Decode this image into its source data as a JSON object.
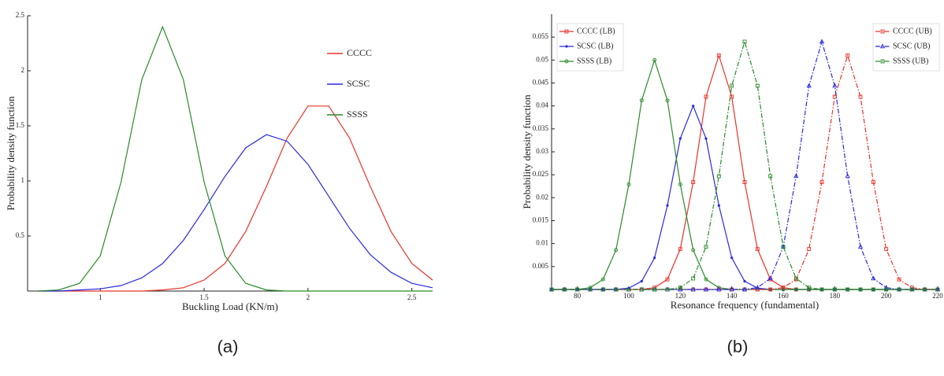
{
  "captions": [
    "(a)",
    "(b)"
  ],
  "chart_data": [
    {
      "type": "line",
      "x_label": "Buckling Load (KN/m)",
      "y_label": "Probability density function",
      "x": [
        0.7,
        0.8,
        0.9,
        1.0,
        1.1,
        1.2,
        1.3,
        1.4,
        1.5,
        1.6,
        1.7,
        1.8,
        1.9,
        2.0,
        2.1,
        2.2,
        2.3,
        2.4,
        2.5,
        2.6
      ],
      "xlim": [
        0.65,
        2.6
      ],
      "xticks": [
        1,
        1.5,
        2,
        2.5
      ],
      "ylim": [
        0,
        2.5
      ],
      "yticks": [
        0.5,
        1,
        1.5,
        2,
        2.5
      ],
      "series": [
        {
          "name": "CCCC",
          "color": "#e8332b",
          "values": [
            0,
            0,
            0,
            0,
            0,
            0,
            0.01,
            0.03,
            0.1,
            0.25,
            0.54,
            0.95,
            1.39,
            1.68,
            1.68,
            1.39,
            0.95,
            0.54,
            0.25,
            0.1
          ]
        },
        {
          "name": "SCSC",
          "color": "#2a2ae0",
          "values": [
            0,
            0,
            0.01,
            0.02,
            0.05,
            0.12,
            0.25,
            0.46,
            0.74,
            1.04,
            1.3,
            1.42,
            1.36,
            1.15,
            0.86,
            0.57,
            0.33,
            0.17,
            0.07,
            0.03
          ]
        },
        {
          "name": "SSSS",
          "color": "#2a8a2a",
          "values": [
            0,
            0.01,
            0.07,
            0.32,
            0.99,
            1.92,
            2.4,
            1.92,
            0.99,
            0.32,
            0.07,
            0.01,
            0,
            0,
            0,
            0,
            0,
            0,
            0,
            0
          ]
        }
      ]
    },
    {
      "type": "line",
      "x_label": "Resonance frequency (fundamental)",
      "y_label": "Probability density function",
      "x": [
        70,
        75,
        80,
        85,
        90,
        95,
        100,
        105,
        110,
        115,
        120,
        125,
        130,
        135,
        140,
        145,
        150,
        155,
        160,
        165,
        170,
        175,
        180,
        185,
        190,
        195,
        200,
        205,
        210,
        215,
        220
      ],
      "xlim": [
        70,
        220
      ],
      "xticks": [
        80,
        100,
        120,
        140,
        160,
        180,
        200,
        220
      ],
      "ylim": [
        0,
        0.06
      ],
      "yticks": [
        0.005,
        0.01,
        0.015,
        0.02,
        0.025,
        0.03,
        0.035,
        0.04,
        0.045,
        0.05,
        0.055
      ],
      "series": [
        {
          "name": "CCCC (LB)",
          "color": "#e8332b",
          "marker": "square",
          "dash": "solid",
          "values": [
            0,
            0,
            0,
            0,
            0,
            0,
            0,
            0,
            0.0004,
            0.0022,
            0.0088,
            0.0234,
            0.042,
            0.051,
            0.042,
            0.0234,
            0.0088,
            0.0022,
            0.0004,
            0,
            0,
            0,
            0,
            0,
            0,
            0,
            0,
            0,
            0,
            0,
            0
          ]
        },
        {
          "name": "SCSC (LB)",
          "color": "#2a2ae0",
          "marker": "dot",
          "dash": "solid",
          "values": [
            0,
            0,
            0,
            0,
            0,
            0,
            0.0003,
            0.0018,
            0.0069,
            0.0183,
            0.0329,
            0.04,
            0.0329,
            0.0183,
            0.0069,
            0.0018,
            0.0003,
            0,
            0,
            0,
            0,
            0,
            0,
            0,
            0,
            0,
            0,
            0,
            0,
            0,
            0
          ]
        },
        {
          "name": "SSSS (LB)",
          "color": "#2a8a2a",
          "marker": "circle",
          "dash": "solid",
          "values": [
            0,
            0,
            0,
            0.0004,
            0.0022,
            0.0086,
            0.0229,
            0.0412,
            0.05,
            0.0412,
            0.0229,
            0.0086,
            0.0022,
            0.0004,
            0,
            0,
            0,
            0,
            0,
            0,
            0,
            0,
            0,
            0,
            0,
            0,
            0,
            0,
            0,
            0,
            0
          ]
        },
        {
          "name": "CCCC (UB)",
          "color": "#e8332b",
          "marker": "square",
          "dash": "dashdot",
          "values": [
            0,
            0,
            0,
            0,
            0,
            0,
            0,
            0,
            0,
            0,
            0,
            0,
            0,
            0,
            0,
            0,
            0,
            0,
            0.0004,
            0.0022,
            0.0088,
            0.0234,
            0.042,
            0.051,
            0.042,
            0.0234,
            0.0088,
            0.0022,
            0.0004,
            0,
            0
          ]
        },
        {
          "name": "SCSC (UB)",
          "color": "#2a2ae0",
          "marker": "triangle",
          "dash": "dashdot",
          "values": [
            0,
            0,
            0,
            0,
            0,
            0,
            0,
            0,
            0,
            0,
            0,
            0,
            0,
            0,
            0,
            0,
            0.0004,
            0.0024,
            0.0093,
            0.0247,
            0.0444,
            0.054,
            0.0444,
            0.0247,
            0.0093,
            0.0024,
            0.0004,
            0,
            0,
            0,
            0
          ]
        },
        {
          "name": "SSSS (UB)",
          "color": "#2a8a2a",
          "marker": "square",
          "dash": "dashdot",
          "values": [
            0,
            0,
            0,
            0,
            0,
            0,
            0,
            0,
            0,
            0,
            0.0004,
            0.0024,
            0.0093,
            0.0247,
            0.0444,
            0.054,
            0.0444,
            0.0247,
            0.0093,
            0.0024,
            0.0004,
            0,
            0,
            0,
            0,
            0,
            0,
            0,
            0,
            0,
            0
          ]
        }
      ]
    }
  ]
}
